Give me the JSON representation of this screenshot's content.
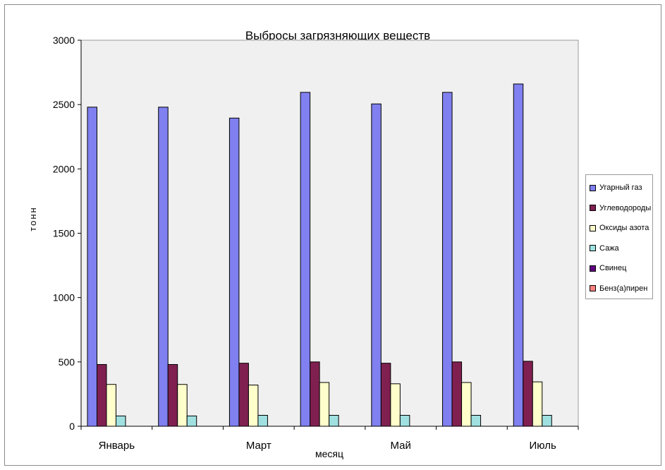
{
  "chart_data": {
    "type": "bar",
    "title": "Выбросы  загрязняющих  веществ",
    "xlabel": "месяц",
    "ylabel": "тонн",
    "ylim": [
      0,
      3000
    ],
    "yticks": [
      0,
      500,
      1000,
      1500,
      2000,
      2500,
      3000
    ],
    "categories": [
      "Январь",
      "",
      "Март",
      "",
      "Май",
      "",
      "Июль"
    ],
    "series": [
      {
        "name": "Угарный газ",
        "color": "#8080f0",
        "values": [
          2480,
          2480,
          2395,
          2595,
          2505,
          2595,
          2660
        ]
      },
      {
        "name": "Углеводороды",
        "color": "#7f2050",
        "values": [
          480,
          480,
          490,
          500,
          490,
          500,
          505
        ]
      },
      {
        "name": "Оксиды азота",
        "color": "#ffffcc",
        "values": [
          325,
          325,
          320,
          340,
          330,
          340,
          345
        ]
      },
      {
        "name": "Сажа",
        "color": "#a0e0e0",
        "values": [
          80,
          80,
          85,
          85,
          85,
          85,
          85
        ]
      },
      {
        "name": "Свинец",
        "color": "#600080",
        "values": [
          0,
          0,
          0,
          0,
          0,
          0,
          0
        ]
      },
      {
        "name": "Бенз(а)пирен",
        "color": "#ff8080",
        "values": [
          0,
          0,
          0,
          0,
          0,
          0,
          0
        ]
      }
    ],
    "plot_background": "#f0f0f0",
    "grid": false,
    "legend_position": "right"
  }
}
